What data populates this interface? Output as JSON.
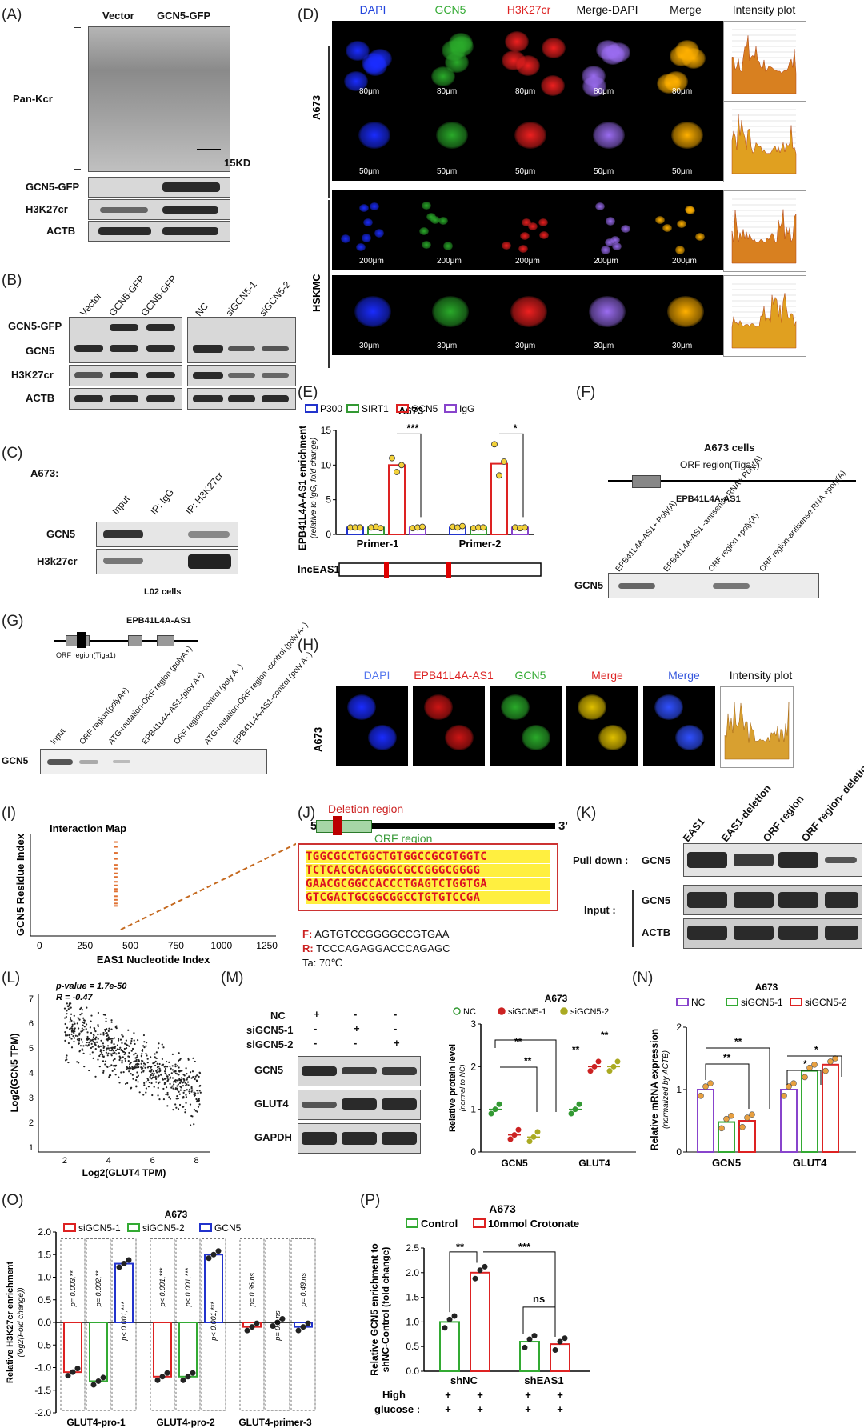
{
  "panels": {
    "A": {
      "letter": "(A)",
      "lanes": [
        "Vector",
        "GCN5-GFP"
      ],
      "rows": [
        "Pan-Kcr",
        "GCN5-GFP",
        "H3K27cr",
        "ACTB"
      ],
      "marker": "15KD"
    },
    "B": {
      "letter": "(B)",
      "lanes_left": [
        "Vector",
        "GCN5-GFP",
        "GCN5-GFP"
      ],
      "lanes_right": [
        "NC",
        "siGCN5-1",
        "siGCN5-2"
      ],
      "rows": [
        "GCN5-GFP",
        "GCN5",
        "H3K27cr",
        "ACTB"
      ]
    },
    "C": {
      "letter": "(C)",
      "title": "A673:",
      "lanes": [
        "Input",
        "IP: IgG",
        "IP: H3K27cr"
      ],
      "rows": [
        "GCN5",
        "H3k27cr"
      ],
      "footer": "L02 cells"
    },
    "D": {
      "letter": "(D)",
      "columns": [
        "DAPI",
        "GCN5",
        "H3K27cr",
        "Merge-DAPI",
        "Merge",
        "Intensity plot"
      ],
      "column_colors": [
        "#2244dd",
        "#33aa33",
        "#dd2222",
        "#111111",
        "#111111",
        "#111111"
      ],
      "groups": [
        "A673",
        "HSKMC"
      ],
      "scales": [
        "80μm",
        "50μm",
        "200μm",
        "30μm"
      ]
    },
    "E": {
      "letter": "(E)",
      "footer_label": "lncEAS1"
    },
    "F": {
      "letter": "(F)",
      "title": "A673 cells",
      "orf_label": "ORF region(Tiga1)",
      "gene": "EPB41L4A-AS1",
      "lanes": [
        "EPB41L4A-AS1+ Poly(A)",
        "EPB41L4A-AS1 -antisense RNA+ Poly(A)",
        "ORF region +poly(A)",
        "ORF region-antisense RNA +poly(A)"
      ],
      "row": "GCN5"
    },
    "G": {
      "letter": "(G)",
      "gene": "EPB41L4A-AS1",
      "orf_label": "ORF region(Tiga1)",
      "lanes": [
        "Input",
        "ORF region(polyA+)",
        "ATG-mutation-ORF region (polyA+)",
        "EPB41L4A-AS1-(ploy A+)",
        "ORF region-control (poly A- )",
        "ATG-mutation-ORF region -control (poly A- )",
        "EPB41L4A-AS1-control (poly A- )"
      ],
      "row": "GCN5"
    },
    "H": {
      "letter": "(H)",
      "columns": [
        "DAPI",
        "EPB41L4A-AS1",
        "GCN5",
        "Merge",
        "Merge",
        "Intensity plot"
      ],
      "column_colors": [
        "#5577ee",
        "#dd2222",
        "#33aa33",
        "#dd2222",
        "#3355dd",
        "#111111"
      ],
      "group": "A673"
    },
    "I": {
      "letter": "(I)"
    },
    "J": {
      "letter": "(J)",
      "deletion": "Deletion region",
      "orf": "ORF region",
      "five": "5'",
      "three": "3'",
      "seq": [
        "TGGCGCCTGGCTGTGGCCGCGTGGTC",
        "TCTCACGCAGGGGCGCCGGGCGGGG",
        "GAACGCGGCCACCCTGAGTCTGGTGA",
        "GTCGACTGCGGCGGCCTGTGTCCGA"
      ],
      "f_label": "F:",
      "f_seq": "AGTGTCCGGGGCCGTGAA",
      "r_label": "R:",
      "r_seq": "TCCCAGAGGACCCAGAGC",
      "ta": "Ta: 70℃"
    },
    "K": {
      "letter": "(K)",
      "lanes": [
        "EAS1",
        "EAS1-deletion",
        "ORF region",
        "ORF region- deletion"
      ],
      "pull": "Pull down :",
      "input": "Input :",
      "rows": [
        "GCN5",
        "GCN5",
        "ACTB"
      ]
    },
    "L": {
      "letter": "(L)"
    },
    "M": {
      "letter": "(M)",
      "rows_left": [
        "NC",
        "siGCN5-1",
        "siGCN5-2"
      ],
      "signs": [
        [
          "+",
          "-",
          "-"
        ],
        [
          "-",
          "+",
          "-"
        ],
        [
          "-",
          "-",
          "+"
        ]
      ],
      "blots": [
        "GCN5",
        "GLUT4",
        "GAPDH"
      ]
    },
    "N": {
      "letter": "(N)"
    },
    "O": {
      "letter": "(O)"
    },
    "P": {
      "letter": "(P)",
      "bottom_row1": "High",
      "bottom_row2": "glucose :",
      "plus": "+"
    }
  },
  "chart_data": [
    {
      "id": "E",
      "type": "bar",
      "title": "A673",
      "ylabel": "EPB41L4A-AS1 enrichment",
      "ylabel2": "(relative to IgG, fold change)",
      "categories": [
        "Primer-1",
        "Primer-2"
      ],
      "legend": [
        "P300",
        "SIRT1",
        "GCN5",
        "IgG"
      ],
      "colors": [
        "#2233cc",
        "#339933",
        "#dd2222",
        "#8844cc"
      ],
      "values": [
        [
          1.0,
          1.0,
          10.0,
          1.0
        ],
        [
          1.0,
          1.0,
          10.2,
          1.0
        ]
      ],
      "points": [
        [
          [
            1,
            1,
            1
          ],
          [
            1,
            1.1,
            0.9
          ],
          [
            11,
            9,
            10
          ],
          [
            0.9,
            1,
            1.1
          ]
        ],
        [
          [
            1.1,
            1,
            1.2
          ],
          [
            0.9,
            1,
            1
          ],
          [
            13,
            8.5,
            10.5
          ],
          [
            1,
            0.9,
            1
          ]
        ]
      ],
      "sig": [
        "***",
        "*"
      ],
      "ylim": [
        0,
        15
      ],
      "yticks": [
        0,
        5,
        10,
        15
      ]
    },
    {
      "id": "I",
      "type": "scatter",
      "title": "Interaction Map",
      "xlabel": "EAS1 Nucleotide Index",
      "ylabel": "GCN5 Residue Index",
      "xticks": [
        0,
        250,
        500,
        750,
        1000,
        1250
      ],
      "xlim": [
        -50,
        1300
      ],
      "ylim": [
        0,
        850
      ],
      "x": [
        420,
        420,
        420,
        420,
        420,
        420,
        420,
        420,
        420,
        420,
        420,
        420,
        420,
        420,
        420,
        420
      ],
      "y": [
        250,
        270,
        300,
        330,
        370,
        390,
        420,
        450,
        490,
        520,
        560,
        590,
        640,
        690,
        740,
        780
      ]
    },
    {
      "id": "L",
      "type": "scatter",
      "pvalue": "p-value = 1.7e-50",
      "r": "R = -0.47",
      "xlabel": "Log2(GLUT4 TPM)",
      "ylabel": "Log2(GCN5 TPM)",
      "xticks": [
        2,
        4,
        6,
        8
      ],
      "yticks": [
        1,
        2,
        3,
        4,
        5,
        6,
        7
      ],
      "xlim": [
        0.8,
        8.6
      ],
      "ylim": [
        0.8,
        7.2
      ]
    },
    {
      "id": "M",
      "type": "scatter",
      "title": "A673",
      "ylabel": "Relative protein level",
      "ylabel2": "(normal to NC)",
      "categories": [
        "GCN5",
        "GLUT4"
      ],
      "legend": [
        "NC",
        "siGCN5-1",
        "siGCN5-2"
      ],
      "colors": [
        "#339933",
        "#cc2222",
        "#aaaa22"
      ],
      "means": [
        [
          1.0,
          0.4,
          0.35
        ],
        [
          1.0,
          2.0,
          2.0
        ]
      ],
      "ylim": [
        0,
        3
      ],
      "yticks": [
        0,
        1,
        2,
        3
      ],
      "sig": [
        "**",
        "**",
        "**",
        "**"
      ]
    },
    {
      "id": "N",
      "type": "bar",
      "title": "A673",
      "ylabel": "Relative mRNA expression",
      "ylabel2": "(normalized by ACTB)",
      "categories": [
        "GCN5",
        "GLUT4"
      ],
      "legend": [
        "NC",
        "siGCN5-1",
        "siGCN5-2"
      ],
      "colors": [
        "#8844cc",
        "#33aa33",
        "#dd2222"
      ],
      "values": [
        [
          1.0,
          0.48,
          0.5
        ],
        [
          1.0,
          1.3,
          1.4
        ]
      ],
      "ylim": [
        0,
        2
      ],
      "yticks": [
        0,
        1,
        2
      ],
      "sig": [
        "**",
        "**",
        "*",
        "*"
      ]
    },
    {
      "id": "O",
      "type": "bar",
      "title": "A673",
      "ylabel": "Relative H3K27cr enrichment",
      "ylabel2": "(log2(Fold change))",
      "categories": [
        "GLUT4-pro-1",
        "GLUT4-pro-2",
        "GLUT4-primer-3"
      ],
      "legend": [
        "siGCN5-1",
        "siGCN5-2",
        "GCN5"
      ],
      "colors": [
        "#dd2222",
        "#33aa33",
        "#2233cc"
      ],
      "values": [
        [
          -1.1,
          -1.3,
          1.3
        ],
        [
          -1.2,
          -1.2,
          1.5
        ],
        [
          -0.1,
          0.0,
          -0.1
        ]
      ],
      "ylim": [
        -2,
        2
      ],
      "yticks": [
        "-2.0",
        "-1.5",
        "-1.0",
        "-0.5",
        "0.0",
        "0.5",
        "1.0",
        "1.5",
        "2.0"
      ],
      "pvals": [
        [
          "p= 0.003,**",
          "p= 0.002,**",
          "p< 0.001,***"
        ],
        [
          "p< 0.001,***",
          "p< 0.001,***",
          "p< 0.001,***"
        ],
        [
          "p= 0.36,ns",
          "p= 0.8,ns",
          "p= 0.49,ns"
        ]
      ]
    },
    {
      "id": "P",
      "type": "bar",
      "title": "A673",
      "ylabel": "Relative GCN5 enrichment to",
      "ylabel2": "shNC-Control (fold change)",
      "categories": [
        "shNC",
        "shEAS1"
      ],
      "legend": [
        "Control",
        "10mmol Crotonate"
      ],
      "colors": [
        "#33aa33",
        "#dd2222"
      ],
      "values": [
        [
          1.0,
          2.0
        ],
        [
          0.6,
          0.55
        ]
      ],
      "ylim": [
        0,
        2.5
      ],
      "yticks": [
        "0.0",
        "0.5",
        "1.0",
        "1.5",
        "2.0",
        "2.5"
      ],
      "sig": [
        "**",
        "***",
        "ns"
      ]
    }
  ]
}
